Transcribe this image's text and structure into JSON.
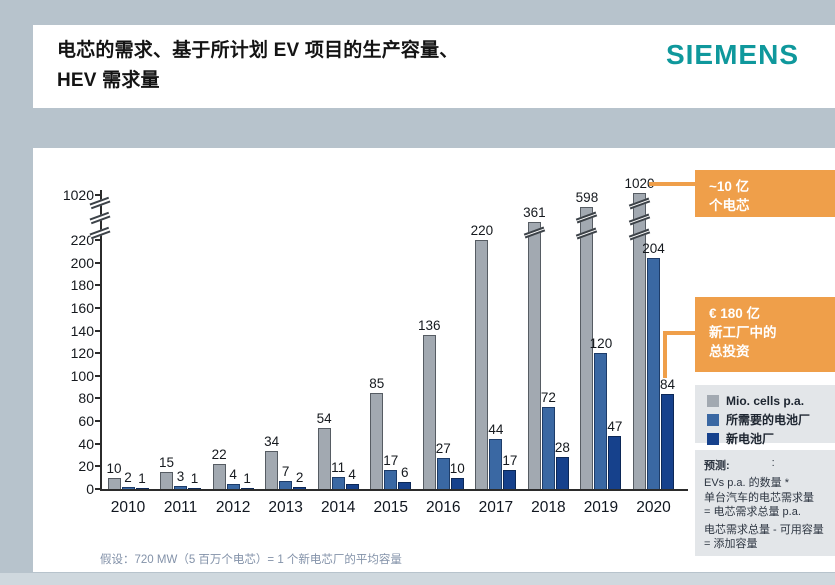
{
  "slide": {
    "title_line1": "电芯的需求、基于所计划 EV 项目的生产容量、",
    "title_line2": "HEV 需求量",
    "brand": "SIEMENS",
    "footnote": "假设：720 MW（5 百万个电芯）= 1 个新电芯厂的平均容量"
  },
  "callouts": {
    "cells_line1": "~10 亿",
    "cells_line2": "个电芯",
    "invest_line1": "€ 180 亿",
    "invest_line2": "新工厂中的",
    "invest_line3": "总投资"
  },
  "legend": {
    "items": [
      {
        "label": "Mio. cells p.a.",
        "color": "#a2a9b1"
      },
      {
        "label": "所需要的电池厂",
        "color": "#3a68a3"
      },
      {
        "label": "新电池厂",
        "color": "#16418c"
      }
    ]
  },
  "forecast": {
    "heading": "预测:",
    "heading_mark": ":",
    "lines": [
      "EVs p.a. 的数量 *",
      "单台汽车的电芯需求量",
      "= 电芯需求总量 p.a.",
      "电芯需求总量 - 可用容量 = 添加容量"
    ]
  },
  "chart_data": {
    "type": "bar",
    "title": "",
    "xlabel": "",
    "ylabel": "",
    "categories": [
      "2010",
      "2011",
      "2012",
      "2013",
      "2014",
      "2015",
      "2016",
      "2017",
      "2018",
      "2019",
      "2020"
    ],
    "series": [
      {
        "name": "Mio. cells p.a.",
        "color": "#a2a9b1",
        "border": "#565c63",
        "values": [
          10,
          15,
          22,
          34,
          54,
          85,
          136,
          220,
          361,
          598,
          1020
        ]
      },
      {
        "name": "所需要的电池厂",
        "color": "#3a68a3",
        "border": "#1d3c69",
        "values": [
          2,
          3,
          4,
          7,
          11,
          17,
          27,
          44,
          72,
          120,
          204
        ]
      },
      {
        "name": "新电池厂",
        "color": "#16418c",
        "border": "#0c2857",
        "values": [
          1,
          1,
          1,
          2,
          4,
          6,
          10,
          17,
          28,
          47,
          84
        ]
      }
    ],
    "yticks": [
      0,
      20,
      40,
      60,
      80,
      100,
      120,
      140,
      160,
      180,
      200,
      220
    ],
    "ylim": [
      0,
      220
    ],
    "axis_break": true,
    "ybreak_top_label": "1020",
    "grid": false,
    "legend_position": "right",
    "annotations": [
      "~10 亿 个电芯 → 2020 gray bar 1020",
      "€ 180 亿 新工厂中的总投资 → 2020 navy bar 84"
    ]
  }
}
